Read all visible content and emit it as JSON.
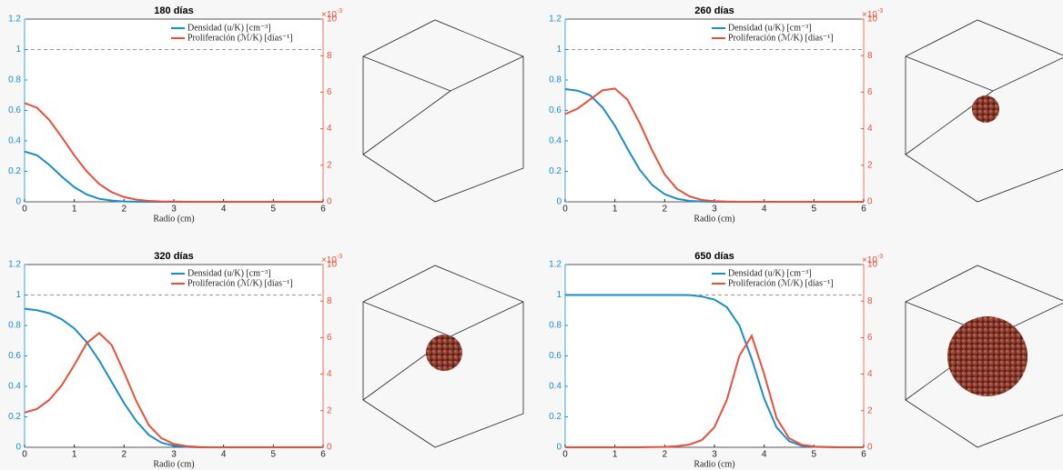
{
  "chart_data": [
    {
      "type": "line",
      "title": "180 días",
      "xlabel": "Radio (cm)",
      "x": [
        0,
        0.25,
        0.5,
        0.75,
        1,
        1.25,
        1.5,
        1.75,
        2,
        2.25,
        2.5,
        2.75,
        3,
        3.25,
        3.5,
        3.75,
        4,
        4.25,
        4.5,
        4.75,
        5,
        5.5,
        6
      ],
      "series": [
        {
          "name": "Densidad (u/K) [cm⁻³]",
          "color": "#1a8dcc",
          "axis": "y",
          "values": [
            0.33,
            0.306,
            0.242,
            0.165,
            0.096,
            0.048,
            0.02,
            0.008,
            0.002,
            0.001,
            0,
            0,
            0,
            0,
            0,
            0,
            0,
            0,
            0,
            0,
            0,
            0,
            0
          ]
        },
        {
          "name": "Proliferación (ℳ/K) [días⁻¹]",
          "color": "#e8503a",
          "axis": "y2",
          "values": [
            5.4,
            5.15,
            4.47,
            3.53,
            2.54,
            1.66,
            0.98,
            0.53,
            0.26,
            0.12,
            0.05,
            0.02,
            0.01,
            0,
            0,
            0,
            0,
            0,
            0,
            0,
            0,
            0,
            0
          ]
        }
      ],
      "xlim": [
        0,
        6
      ],
      "xticks": [
        0,
        1,
        2,
        3,
        4,
        5,
        6
      ],
      "ylim": [
        0,
        1.2
      ],
      "yticks": [
        0,
        0.2,
        0.4,
        0.6,
        0.8,
        1,
        1.2
      ],
      "y2lim": [
        0,
        10
      ],
      "y2ticks": [
        0,
        2,
        4,
        6,
        8,
        10
      ],
      "y2_multiplier": {
        "base": "×10",
        "exponent": "-3"
      },
      "reference_line": 1
    },
    {
      "type": "line",
      "title": "260 días",
      "xlabel": "Radio (cm)",
      "x": [
        0,
        0.25,
        0.5,
        0.75,
        1,
        1.25,
        1.5,
        1.75,
        2,
        2.25,
        2.5,
        2.75,
        3,
        3.25,
        3.5,
        3.75,
        4,
        4.25,
        4.5,
        4.75,
        5,
        5.5,
        6
      ],
      "series": [
        {
          "name": "Densidad (u/K) [cm⁻³]",
          "color": "#1a8dcc",
          "axis": "y",
          "values": [
            0.74,
            0.73,
            0.7,
            0.62,
            0.5,
            0.35,
            0.21,
            0.11,
            0.05,
            0.02,
            0.006,
            0.002,
            0,
            0,
            0,
            0,
            0,
            0,
            0,
            0,
            0,
            0,
            0
          ]
        },
        {
          "name": "Proliferación (ℳ/K) [días⁻¹]",
          "color": "#e8503a",
          "axis": "y2",
          "values": [
            4.8,
            5.1,
            5.6,
            6.1,
            6.2,
            5.6,
            4.3,
            2.8,
            1.5,
            0.7,
            0.3,
            0.1,
            0.04,
            0.01,
            0,
            0,
            0,
            0,
            0,
            0,
            0,
            0,
            0
          ]
        }
      ],
      "xlim": [
        0,
        6
      ],
      "xticks": [
        0,
        1,
        2,
        3,
        4,
        5,
        6
      ],
      "ylim": [
        0,
        1.2
      ],
      "yticks": [
        0,
        0.2,
        0.4,
        0.6,
        0.8,
        1,
        1.2
      ],
      "y2lim": [
        0,
        10
      ],
      "y2ticks": [
        0,
        2,
        4,
        6,
        8,
        10
      ],
      "y2_multiplier": {
        "base": "×10",
        "exponent": "-3"
      },
      "reference_line": 1
    },
    {
      "type": "line",
      "title": "320 días",
      "xlabel": "Radio (cm)",
      "x": [
        0,
        0.25,
        0.5,
        0.75,
        1,
        1.25,
        1.5,
        1.75,
        2,
        2.25,
        2.5,
        2.75,
        3,
        3.25,
        3.5,
        3.75,
        4,
        4.25,
        4.5,
        4.75,
        5,
        5.5,
        6
      ],
      "series": [
        {
          "name": "Densidad (u/K) [cm⁻³]",
          "color": "#1a8dcc",
          "axis": "y",
          "values": [
            0.91,
            0.9,
            0.88,
            0.84,
            0.78,
            0.69,
            0.57,
            0.43,
            0.29,
            0.17,
            0.08,
            0.03,
            0.01,
            0.003,
            0,
            0,
            0,
            0,
            0,
            0,
            0,
            0,
            0
          ]
        },
        {
          "name": "Proliferación (ℳ/K) [días⁻¹]",
          "color": "#e8503a",
          "axis": "y2",
          "values": [
            1.9,
            2.1,
            2.6,
            3.4,
            4.5,
            5.7,
            6.25,
            5.6,
            4.1,
            2.5,
            1.2,
            0.5,
            0.18,
            0.06,
            0.02,
            0,
            0,
            0,
            0,
            0,
            0,
            0,
            0
          ]
        }
      ],
      "xlim": [
        0,
        6
      ],
      "xticks": [
        0,
        1,
        2,
        3,
        4,
        5,
        6
      ],
      "ylim": [
        0,
        1.2
      ],
      "yticks": [
        0,
        0.2,
        0.4,
        0.6,
        0.8,
        1,
        1.2
      ],
      "y2lim": [
        0,
        10
      ],
      "y2ticks": [
        0,
        2,
        4,
        6,
        8,
        10
      ],
      "y2_multiplier": {
        "base": "×10",
        "exponent": "-3"
      },
      "reference_line": 1
    },
    {
      "type": "line",
      "title": "650 días",
      "xlabel": "Radio (cm)",
      "x": [
        0,
        0.25,
        0.5,
        0.75,
        1,
        1.25,
        1.5,
        1.75,
        2,
        2.25,
        2.5,
        2.75,
        3,
        3.25,
        3.5,
        3.75,
        4,
        4.25,
        4.5,
        4.75,
        5,
        5.5,
        6
      ],
      "series": [
        {
          "name": "Densidad (u/K) [cm⁻³]",
          "color": "#1a8dcc",
          "axis": "y",
          "values": [
            1,
            1,
            1,
            1,
            1,
            1,
            1,
            1,
            1,
            1,
            0.999,
            0.99,
            0.97,
            0.92,
            0.8,
            0.58,
            0.32,
            0.13,
            0.04,
            0.01,
            0.003,
            0,
            0
          ]
        },
        {
          "name": "Proliferación (ℳ/K) [días⁻¹]",
          "color": "#e8503a",
          "axis": "y2",
          "values": [
            0,
            0,
            0,
            0,
            0,
            0,
            0,
            0.01,
            0.02,
            0.06,
            0.15,
            0.4,
            1.1,
            2.6,
            5,
            6.1,
            4,
            1.6,
            0.5,
            0.14,
            0.04,
            0,
            0
          ]
        }
      ],
      "xlim": [
        0,
        6
      ],
      "xticks": [
        0,
        1,
        2,
        3,
        4,
        5,
        6
      ],
      "ylim": [
        0,
        1.2
      ],
      "yticks": [
        0,
        0.2,
        0.4,
        0.6,
        0.8,
        1,
        1.2
      ],
      "y2lim": [
        0,
        10
      ],
      "y2ticks": [
        0,
        2,
        4,
        6,
        8,
        10
      ],
      "y2_multiplier": {
        "base": "×10",
        "exponent": "-3"
      },
      "reference_line": 1
    }
  ]
}
